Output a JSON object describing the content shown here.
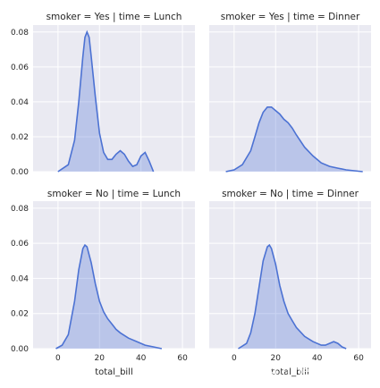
{
  "watermark": "https://blog.csdn.net/MsSpark",
  "colors": {
    "panel_bg": "#eaeaf2",
    "grid": "#ffffff",
    "line": "#4c72d3",
    "fill_opacity": 0.3
  },
  "chart_data": {
    "type": "area",
    "layout": "facet-grid-2x2",
    "xlabel": "total_bill",
    "ylabel": "",
    "xlim": [
      -12,
      66
    ],
    "ylim": [
      0,
      0.084
    ],
    "xticks": [
      0,
      20,
      40,
      60
    ],
    "yticks": [
      0.0,
      0.02,
      0.04,
      0.06,
      0.08
    ],
    "ytick_labels": [
      "0.00",
      "0.02",
      "0.04",
      "0.06",
      "0.08"
    ],
    "grid": true,
    "panels": [
      {
        "title": "smoker = Yes | time = Lunch",
        "x": [
          0,
          5,
          8,
          10,
          12,
          13,
          14,
          15,
          16,
          18,
          20,
          22,
          24,
          26,
          28,
          30,
          32,
          34,
          36,
          38,
          40,
          42,
          44,
          46
        ],
        "y": [
          0.0,
          0.004,
          0.018,
          0.04,
          0.066,
          0.077,
          0.08,
          0.077,
          0.066,
          0.043,
          0.022,
          0.011,
          0.007,
          0.007,
          0.01,
          0.012,
          0.01,
          0.006,
          0.003,
          0.004,
          0.009,
          0.011,
          0.006,
          0.0
        ]
      },
      {
        "title": "smoker = Yes | time = Dinner",
        "x": [
          -4,
          0,
          4,
          8,
          10,
          12,
          14,
          16,
          18,
          20,
          22,
          24,
          26,
          28,
          30,
          34,
          38,
          42,
          46,
          50,
          54,
          58,
          62
        ],
        "y": [
          0.0,
          0.001,
          0.004,
          0.012,
          0.02,
          0.028,
          0.034,
          0.037,
          0.037,
          0.035,
          0.033,
          0.03,
          0.028,
          0.025,
          0.021,
          0.014,
          0.009,
          0.005,
          0.003,
          0.002,
          0.001,
          0.0005,
          0.0
        ]
      },
      {
        "title": "smoker = No | time = Lunch",
        "x": [
          -1,
          2,
          5,
          8,
          10,
          12,
          13,
          14,
          16,
          18,
          20,
          22,
          24,
          26,
          28,
          30,
          34,
          38,
          42,
          46,
          50
        ],
        "y": [
          0.0,
          0.002,
          0.008,
          0.027,
          0.045,
          0.057,
          0.059,
          0.058,
          0.049,
          0.037,
          0.027,
          0.021,
          0.017,
          0.014,
          0.011,
          0.009,
          0.006,
          0.004,
          0.002,
          0.001,
          0.0
        ]
      },
      {
        "title": "smoker = No | time = Dinner",
        "x": [
          2,
          6,
          8,
          10,
          12,
          14,
          16,
          17,
          18,
          20,
          22,
          24,
          26,
          28,
          30,
          34,
          38,
          42,
          44,
          46,
          48,
          50,
          52,
          54
        ],
        "y": [
          0.0,
          0.003,
          0.009,
          0.02,
          0.035,
          0.05,
          0.058,
          0.059,
          0.057,
          0.048,
          0.036,
          0.027,
          0.02,
          0.016,
          0.012,
          0.007,
          0.004,
          0.002,
          0.002,
          0.003,
          0.004,
          0.003,
          0.001,
          0.0
        ]
      }
    ]
  }
}
